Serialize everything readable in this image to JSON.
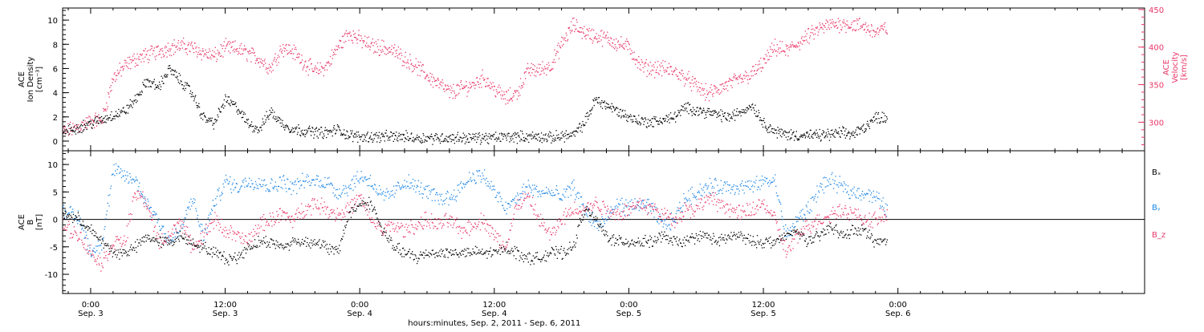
{
  "colors": {
    "black": "#000000",
    "pink": "#e8386a",
    "blue": "#1e87e6"
  },
  "x_axis": {
    "title": "hours:minutes, Sep. 2, 2011 - Sep. 6, 2011",
    "range_hours": [
      -2.5,
      94
    ],
    "ticks": [
      {
        "h": 0,
        "time": "0:00",
        "date": "Sep. 3"
      },
      {
        "h": 12,
        "time": "12:00",
        "date": "Sep. 3"
      },
      {
        "h": 24,
        "time": "0:00",
        "date": "Sep. 4"
      },
      {
        "h": 36,
        "time": "12:00",
        "date": "Sep. 4"
      },
      {
        "h": 48,
        "time": "0:00",
        "date": "Sep. 5"
      },
      {
        "h": 60,
        "time": "12:00",
        "date": "Sep. 5"
      },
      {
        "h": 72,
        "time": "0:00",
        "date": "Sep. 6"
      }
    ]
  },
  "chart_data": [
    {
      "type": "scatter",
      "panel": "top",
      "left_axis": {
        "label_lines": [
          "ACE",
          "Ion Density",
          "[cm⁻³]"
        ],
        "ylim": [
          -0.8,
          11
        ],
        "ticks": [
          0,
          2,
          4,
          6,
          8,
          10
        ]
      },
      "right_axis": {
        "label_lines": [
          "ACE",
          "Velocity",
          "[km/s]"
        ],
        "ylim": [
          262,
          452
        ],
        "ticks": [
          300,
          350,
          400,
          450
        ]
      },
      "series": [
        {
          "axis": "left",
          "color": "black",
          "x": [
            -2.5,
            -1,
            0,
            1,
            2,
            3,
            4,
            5,
            6,
            7,
            8,
            9,
            10,
            11,
            12,
            13,
            14,
            15,
            16,
            17,
            18,
            19,
            20,
            21,
            22,
            23,
            24,
            25,
            26,
            27,
            28,
            29,
            30,
            31,
            32,
            33,
            34,
            35,
            36,
            37,
            38,
            39,
            40,
            41,
            42,
            43,
            44,
            45,
            46,
            47,
            48,
            49,
            50,
            51,
            52,
            53,
            54,
            55,
            56,
            57,
            58,
            59,
            60,
            61,
            62,
            63,
            64,
            65,
            66,
            67,
            68,
            69,
            70,
            71
          ],
          "values": [
            0.8,
            1.2,
            1.5,
            1.8,
            2.2,
            2.5,
            3.5,
            5.0,
            4.5,
            6.0,
            5.0,
            4.0,
            2.0,
            1.5,
            3.5,
            2.8,
            1.5,
            1.0,
            2.5,
            1.5,
            1.0,
            0.9,
            0.8,
            0.7,
            1.0,
            0.5,
            0.4,
            0.4,
            0.4,
            0.4,
            0.4,
            0.3,
            0.3,
            0.3,
            0.3,
            0.3,
            0.3,
            0.3,
            0.3,
            0.4,
            0.4,
            0.4,
            0.4,
            0.3,
            0.5,
            0.5,
            1.5,
            3.5,
            3.0,
            2.5,
            2.0,
            1.7,
            1.6,
            1.8,
            2.0,
            2.8,
            2.6,
            2.4,
            2.2,
            2.0,
            2.5,
            3.0,
            1.5,
            0.8,
            0.6,
            0.5,
            0.5,
            0.5,
            0.6,
            0.7,
            0.6,
            1.2,
            2.0,
            2.0
          ]
        },
        {
          "axis": "right",
          "color": "pink",
          "x": [
            -2.5,
            -1,
            0,
            1,
            2,
            3,
            4,
            5,
            6,
            7,
            8,
            9,
            10,
            11,
            12,
            13,
            14,
            15,
            16,
            17,
            18,
            19,
            20,
            21,
            22,
            23,
            24,
            25,
            26,
            27,
            28,
            29,
            30,
            31,
            32,
            33,
            34,
            35,
            36,
            37,
            38,
            39,
            40,
            41,
            42,
            43,
            44,
            45,
            46,
            47,
            48,
            49,
            50,
            51,
            52,
            53,
            54,
            55,
            56,
            57,
            58,
            59,
            60,
            61,
            62,
            63,
            64,
            65,
            66,
            67,
            68,
            69,
            70,
            71
          ],
          "values": [
            287,
            295,
            302,
            305,
            360,
            375,
            385,
            390,
            395,
            400,
            402,
            400,
            393,
            388,
            400,
            398,
            392,
            385,
            372,
            400,
            395,
            380,
            368,
            375,
            400,
            420,
            410,
            402,
            400,
            395,
            385,
            375,
            362,
            352,
            340,
            345,
            350,
            360,
            345,
            332,
            340,
            370,
            370,
            376,
            405,
            430,
            420,
            415,
            412,
            405,
            400,
            375,
            372,
            372,
            368,
            360,
            348,
            338,
            345,
            352,
            358,
            365,
            380,
            400,
            395,
            405,
            415,
            425,
            430,
            432,
            430,
            428,
            420,
            426
          ]
        }
      ]
    },
    {
      "type": "scatter",
      "panel": "bottom",
      "left_axis": {
        "label_lines": [
          "ACE",
          "B",
          "[nT]"
        ],
        "ylim": [
          -13.5,
          12.5
        ],
        "ticks": [
          -10,
          -5,
          0,
          5,
          10
        ]
      },
      "zero_line": true,
      "legend": {
        "placement": "right",
        "entries": [
          {
            "label": "Bₓ",
            "color": "black"
          },
          {
            "label": "Bᵧ",
            "color": "blue"
          },
          {
            "label": "B_z",
            "color": "pink"
          }
        ]
      },
      "series": [
        {
          "name": "Bₓ",
          "color": "black",
          "x": [
            -2.5,
            -1,
            0,
            1,
            2,
            3,
            4,
            5,
            6,
            7,
            8,
            9,
            10,
            11,
            12,
            13,
            14,
            15,
            16,
            17,
            18,
            19,
            20,
            21,
            22,
            23,
            24,
            25,
            26,
            27,
            28,
            29,
            30,
            31,
            32,
            33,
            34,
            35,
            36,
            37,
            38,
            39,
            40,
            41,
            42,
            43,
            44,
            45,
            46,
            47,
            48,
            49,
            50,
            51,
            52,
            53,
            54,
            55,
            56,
            57,
            58,
            59,
            60,
            61,
            62,
            63,
            64,
            65,
            66,
            67,
            68,
            69,
            70,
            71
          ],
          "values": [
            1,
            0,
            -2,
            -4,
            -6,
            -6,
            -5,
            -3,
            -4,
            -4,
            -3,
            -4,
            -5,
            -6,
            -7,
            -7,
            -5,
            -4,
            -4,
            -5,
            -4,
            -4,
            -4,
            -5,
            -6,
            1,
            3,
            3,
            -2,
            -5,
            -6,
            -7,
            -6,
            -6,
            -6,
            -6,
            -6,
            -6,
            -6,
            -5,
            -6,
            -7,
            -7,
            -6,
            -6,
            -5,
            2,
            0,
            -3,
            -4,
            -4,
            -4,
            -4,
            -3,
            -4,
            -4,
            -3,
            -3,
            -4,
            -3,
            -3,
            -4,
            -4,
            -4,
            -3,
            -2,
            -4,
            -3,
            -1,
            -3,
            -2,
            -2,
            -4,
            -4
          ]
        },
        {
          "name": "Bᵧ",
          "color": "blue",
          "x": [
            -2.5,
            -1,
            0,
            1,
            2,
            3,
            4,
            5,
            6,
            7,
            8,
            9,
            10,
            11,
            12,
            13,
            14,
            15,
            16,
            17,
            18,
            19,
            20,
            21,
            22,
            23,
            24,
            25,
            26,
            27,
            28,
            29,
            30,
            31,
            32,
            33,
            34,
            35,
            36,
            37,
            38,
            39,
            40,
            41,
            42,
            43,
            44,
            45,
            46,
            47,
            48,
            49,
            50,
            51,
            52,
            53,
            54,
            55,
            56,
            57,
            58,
            59,
            60,
            61,
            62,
            63,
            64,
            65,
            66,
            67,
            68,
            69,
            70,
            71
          ],
          "values": [
            2,
            0,
            -6,
            -4,
            9,
            8,
            7,
            3,
            0,
            -4,
            -2,
            4,
            -3,
            3,
            7,
            6,
            7,
            7,
            6,
            7,
            6,
            7,
            7,
            7,
            5,
            6,
            8,
            7,
            4,
            5,
            7,
            6,
            5,
            4,
            4,
            6,
            8,
            8,
            5,
            2,
            4,
            6,
            5,
            5,
            4,
            6,
            2,
            -1,
            0,
            3,
            2,
            3,
            2,
            -1,
            0,
            4,
            5,
            6,
            6,
            6,
            6,
            6,
            7,
            7,
            -3,
            0,
            2,
            6,
            7,
            6,
            5,
            5,
            4,
            2
          ]
        },
        {
          "name": "B_z",
          "color": "pink",
          "x": [
            -2.5,
            -1,
            0,
            1,
            2,
            3,
            4,
            5,
            6,
            7,
            8,
            9,
            10,
            11,
            12,
            13,
            14,
            15,
            16,
            17,
            18,
            19,
            20,
            21,
            22,
            23,
            24,
            25,
            26,
            27,
            28,
            29,
            30,
            31,
            32,
            33,
            34,
            35,
            36,
            37,
            38,
            39,
            40,
            41,
            42,
            43,
            44,
            45,
            46,
            47,
            48,
            49,
            50,
            51,
            52,
            53,
            54,
            55,
            56,
            57,
            58,
            59,
            60,
            61,
            62,
            63,
            64,
            65,
            66,
            67,
            68,
            69,
            70,
            71
          ],
          "values": [
            -1,
            -3,
            -6,
            -8,
            -4,
            -4,
            5,
            3,
            -4,
            -3,
            0,
            -5,
            -3,
            0,
            -2,
            -3,
            -4,
            -1,
            0,
            1,
            0,
            2,
            3,
            2,
            1,
            2,
            4,
            0,
            -2,
            -1,
            -2,
            -1,
            0,
            -1,
            0,
            -2,
            -1,
            0,
            -3,
            -5,
            3,
            4,
            0,
            -3,
            0,
            2,
            2,
            3,
            2,
            1,
            2,
            3,
            2,
            1,
            0,
            2,
            2,
            4,
            3,
            2,
            1,
            2,
            3,
            0,
            -6,
            -3,
            -1,
            0,
            1,
            2,
            1,
            0,
            0,
            1
          ]
        }
      ]
    }
  ]
}
